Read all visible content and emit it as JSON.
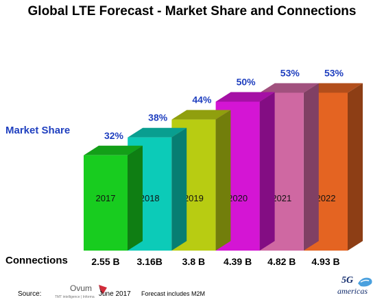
{
  "chart_data": {
    "type": "bar",
    "title": "Global LTE Forecast - Market Share and Connections",
    "categories": [
      "2017",
      "2018",
      "2019",
      "2020",
      "2021",
      "2022"
    ],
    "series": [
      {
        "name": "Market Share",
        "values": [
          32,
          38,
          44,
          50,
          53,
          53
        ]
      }
    ],
    "value_labels": [
      "32%",
      "38%",
      "44%",
      "50%",
      "53%",
      "53%"
    ],
    "connections_label": "Connections",
    "connections": [
      "2.55 B",
      "3.16B",
      "3.8 B",
      "4.39 B",
      "4.82 B",
      "4.93 B"
    ],
    "colors": [
      "#18cc1f",
      "#0ccbb8",
      "#b8cc12",
      "#d415d4",
      "#cf68a2",
      "#e46422"
    ],
    "label_color": "#1f3fbf",
    "ylim": [
      0,
      60
    ]
  },
  "footer": {
    "source_label": "Source:",
    "logo_name": "Ovum",
    "logo_tagline": "TMT intelligence | Informa",
    "date": "June 2017",
    "note": "Forecast includes M2M"
  },
  "brand": {
    "line1": "5G",
    "line2": "americas"
  }
}
